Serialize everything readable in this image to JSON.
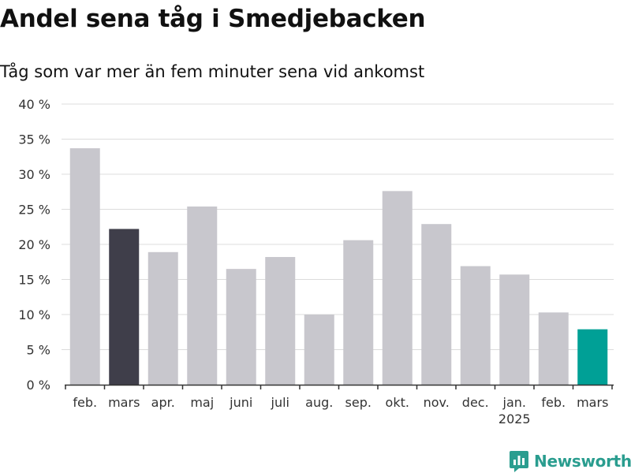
{
  "chart_data": {
    "type": "bar",
    "title": "Andel sena tåg i Smedjebacken",
    "subtitle": "Tåg som var mer än fem minuter sena vid ankomst",
    "categories": [
      "feb.",
      "mars",
      "apr.",
      "maj",
      "juni",
      "juli",
      "aug.",
      "sep.",
      "okt.",
      "nov.",
      "dec.",
      "jan.",
      "feb.",
      "mars"
    ],
    "year_label": {
      "category_index": 11,
      "text": "2025"
    },
    "values": [
      33.7,
      22.2,
      18.9,
      25.4,
      16.5,
      18.2,
      10.0,
      20.6,
      27.6,
      22.9,
      16.9,
      15.7,
      10.3,
      7.9
    ],
    "highlight": {
      "1": "dark",
      "13": "accent"
    },
    "ylim": [
      0,
      40
    ],
    "yticks": [
      0,
      5,
      10,
      15,
      20,
      25,
      30,
      35,
      40
    ],
    "ytick_labels": [
      "0 %",
      "5 %",
      "10 %",
      "15 %",
      "20 %",
      "25 %",
      "30 %",
      "35 %",
      "40 %"
    ],
    "grid": true,
    "xlabel": "",
    "ylabel": "",
    "colors": {
      "default": "#c8c7cd",
      "dark": "#3f3e4a",
      "accent": "#00a096",
      "grid": "#dcdcdc",
      "axis": "#333333"
    }
  },
  "brand": {
    "name": "Newsworthy",
    "icon": "newsworthy-logo-icon",
    "color": "#2a9d8f"
  }
}
